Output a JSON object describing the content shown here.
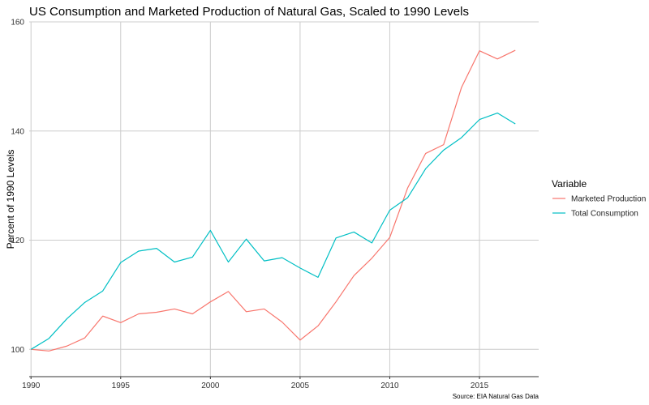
{
  "chart_data": {
    "type": "line",
    "title": "US Consumption and Marketed Production of Natural Gas, Scaled to 1990 Levels",
    "xlabel": "",
    "ylabel": "Percent of 1990 Levels",
    "caption": "Source: EIA Natural Gas Data",
    "legend_title": "Variable",
    "legend_position": "right",
    "grid": true,
    "xlim": [
      1989.9,
      2018.3
    ],
    "ylim": [
      95,
      160
    ],
    "xticks": [
      1990,
      1995,
      2000,
      2005,
      2010,
      2015
    ],
    "yticks": [
      100,
      120,
      140,
      160
    ],
    "x": [
      1990,
      1991,
      1992,
      1993,
      1994,
      1995,
      1996,
      1997,
      1998,
      1999,
      2000,
      2001,
      2002,
      2003,
      2004,
      2005,
      2006,
      2007,
      2008,
      2009,
      2010,
      2011,
      2012,
      2013,
      2014,
      2015,
      2016,
      2017
    ],
    "series": [
      {
        "name": "Marketed Production",
        "color": "#f8766d",
        "values": [
          100,
          99.7,
          100.6,
          102.1,
          106.1,
          104.9,
          106.5,
          106.8,
          107.4,
          106.5,
          108.7,
          110.6,
          106.9,
          107.4,
          105.0,
          101.7,
          104.3,
          108.7,
          113.5,
          116.7,
          120.5,
          129.6,
          135.9,
          137.5,
          148.0,
          154.7,
          153.2,
          154.8
        ]
      },
      {
        "name": "Total Consumption",
        "color": "#00bfc4",
        "values": [
          100,
          102.0,
          105.6,
          108.6,
          110.7,
          115.9,
          118.0,
          118.5,
          116.0,
          116.9,
          121.8,
          116.0,
          120.2,
          116.2,
          116.8,
          114.9,
          113.2,
          120.4,
          121.5,
          119.5,
          125.5,
          127.8,
          133.1,
          136.5,
          138.8,
          142.1,
          143.3,
          141.3
        ]
      }
    ]
  }
}
